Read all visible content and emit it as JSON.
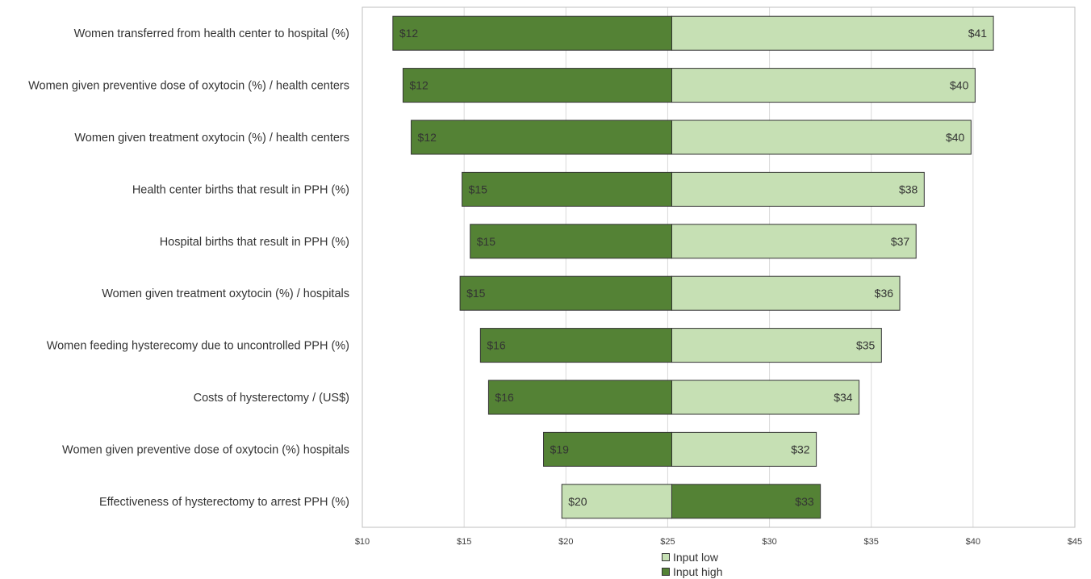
{
  "chart_data": {
    "type": "bar",
    "orientation": "horizontal",
    "subtype": "tornado",
    "title": "",
    "xlabel": "",
    "ylabel": "",
    "base_value": 25.2,
    "xlim": [
      10,
      45
    ],
    "x_ticks": [
      "$10",
      "$15",
      "$20",
      "$25",
      "$30",
      "$35",
      "$40",
      "$45"
    ],
    "x_tick_values": [
      10,
      15,
      20,
      25,
      30,
      35,
      40,
      45
    ],
    "grid": true,
    "legend_position": "bottom",
    "categories": [
      "Women transferred from health center to hospital (%)",
      "Women given preventive dose of oxytocin (%) / health centers",
      "Women given treatment oxytocin (%) / health centers",
      "Health center births that result in PPH (%)",
      "Hospital births that result in PPH (%)",
      "Women given treatment oxytocin (%) / hospitals",
      "Women feeding hysterecomy due to uncontrolled PPH (%)",
      "Costs of hysterectomy / (US$)",
      "Women given preventive dose of oxytocin (%) hospitals",
      "Effectiveness of hysterectomy to arrest PPH (%)"
    ],
    "series": [
      {
        "name": "Input low",
        "color": "#c6e0b4",
        "values": [
          41.0,
          40.1,
          39.9,
          37.6,
          37.2,
          36.4,
          35.5,
          34.4,
          32.3,
          19.8
        ],
        "labels": [
          "$41",
          "$40",
          "$40",
          "$38",
          "$37",
          "$36",
          "$35",
          "$34",
          "$32",
          "$20"
        ]
      },
      {
        "name": "Input high",
        "color": "#548235",
        "values": [
          11.5,
          12.0,
          12.4,
          14.9,
          15.3,
          14.8,
          15.8,
          16.2,
          18.9,
          32.5
        ],
        "labels": [
          "$12",
          "$12",
          "$12",
          "$15",
          "$15",
          "$15",
          "$16",
          "$16",
          "$19",
          "$33"
        ]
      }
    ]
  }
}
